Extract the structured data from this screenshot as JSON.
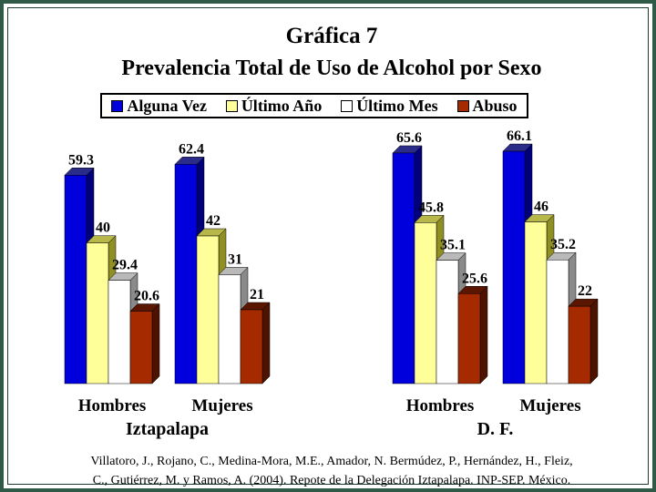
{
  "chart_data": {
    "type": "bar",
    "title": "Gráfica 7",
    "subtitle": "Prevalencia Total de Uso de Alcohol por Sexo",
    "series": [
      {
        "name": "Alguna Vez",
        "color": "#0000dd",
        "values": [
          59.3,
          62.4,
          65.6,
          66.1
        ]
      },
      {
        "name": "Último Año",
        "color": "#ffff99",
        "values": [
          40,
          42,
          45.8,
          46
        ]
      },
      {
        "name": "Último Mes",
        "color": "#ffffff",
        "values": [
          29.4,
          31,
          35.1,
          35.2
        ]
      },
      {
        "name": "Abuso",
        "color": "#a52a00",
        "values": [
          20.6,
          21,
          25.6,
          22
        ]
      }
    ],
    "categories": [
      "Hombres",
      "Mujeres",
      "Hombres",
      "Mujeres"
    ],
    "groups": [
      {
        "label": "Iztapalapa",
        "categories": [
          "Hombres",
          "Mujeres"
        ]
      },
      {
        "label": "D. F.",
        "categories": [
          "Hombres",
          "Mujeres"
        ]
      }
    ],
    "ylim": [
      0,
      70
    ],
    "grid": false,
    "legend_position": "top"
  },
  "source": {
    "line1": "Villatoro, J., Rojano, C., Medina-Mora, M.E., Amador, N. Bermúdez, P., Hernández, H., Fleiz,",
    "line2": "C., Gutiérrez, M. y Ramos, A. (2004). Repote de la Delegación Iztapalapa. INP-SEP. México."
  }
}
